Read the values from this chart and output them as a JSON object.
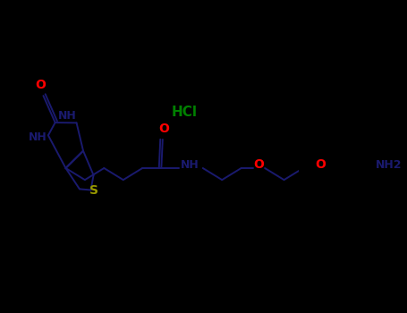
{
  "background_color": "#000000",
  "figsize": [
    4.55,
    3.5
  ],
  "dpi": 100,
  "bond_color": "#1a1a6e",
  "bond_lw": 1.4,
  "O_color": "#ff0000",
  "N_color": "#1a1a6e",
  "S_color": "#999900",
  "Cl_color": "#008000",
  "HCl_color": "#008000",
  "xlim": [
    0,
    455
  ],
  "ylim": [
    0,
    350
  ]
}
